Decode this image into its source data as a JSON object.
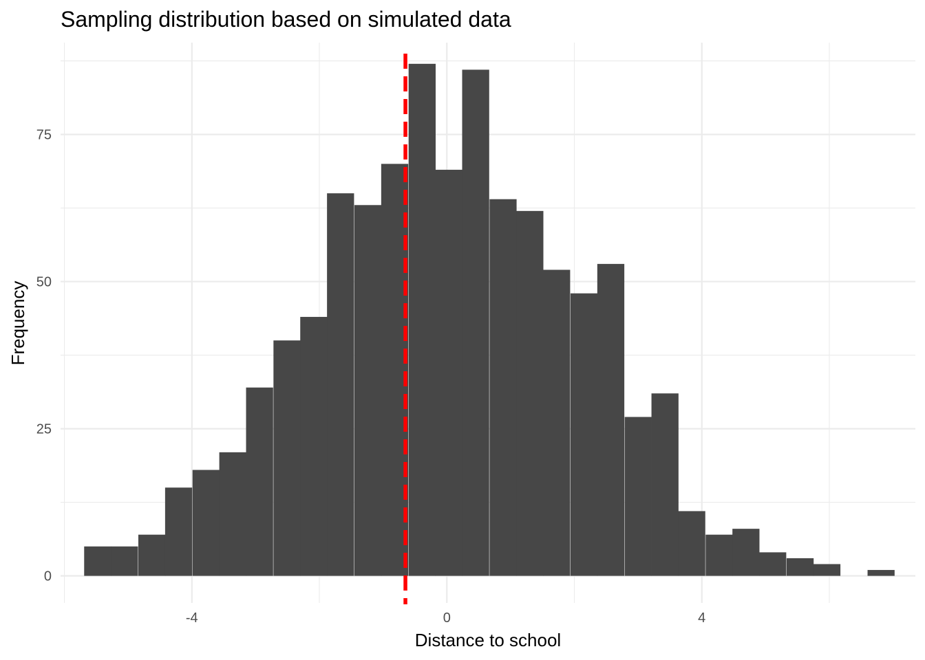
{
  "chart_data": {
    "type": "bar",
    "title": "Sampling distribution based on simulated data",
    "xlabel": "Distance to school",
    "ylabel": "Frequency",
    "xlim": [
      -6.06,
      7.35
    ],
    "ylim": [
      -4.6,
      90.6
    ],
    "x_ticks": [
      {
        "value": -4,
        "label": "-4"
      },
      {
        "value": 0,
        "label": "0"
      },
      {
        "value": 4,
        "label": "4"
      }
    ],
    "x_minor_ticks": [
      -6,
      -2,
      2,
      6
    ],
    "y_ticks": [
      {
        "value": 0,
        "label": "0"
      },
      {
        "value": 25,
        "label": "25"
      },
      {
        "value": 50,
        "label": "50"
      },
      {
        "value": 75,
        "label": "75"
      }
    ],
    "y_minor_ticks": [
      12.5,
      37.5,
      62.5,
      87.5
    ],
    "grid": true,
    "bin_width": 0.4242,
    "bin_starts": [
      -5.69,
      -5.27,
      -4.84,
      -4.42,
      -3.99,
      -3.57,
      -3.15,
      -2.72,
      -2.3,
      -1.88,
      -1.45,
      -1.03,
      -0.6,
      -0.18,
      0.24,
      0.67,
      1.09,
      1.51,
      1.94,
      2.36,
      2.79,
      3.21,
      3.63,
      4.06,
      4.48,
      4.9,
      5.33,
      5.75,
      6.18,
      6.6
    ],
    "values": [
      5,
      5,
      7,
      15,
      18,
      21,
      32,
      40,
      44,
      65,
      63,
      70,
      87,
      69,
      86,
      64,
      62,
      52,
      48,
      53,
      27,
      31,
      11,
      7,
      8,
      4,
      3,
      2,
      0,
      1
    ],
    "bar_color": "#474747",
    "reference_line": {
      "x": -0.65,
      "color": "#ff0000",
      "style": "dashed"
    }
  }
}
